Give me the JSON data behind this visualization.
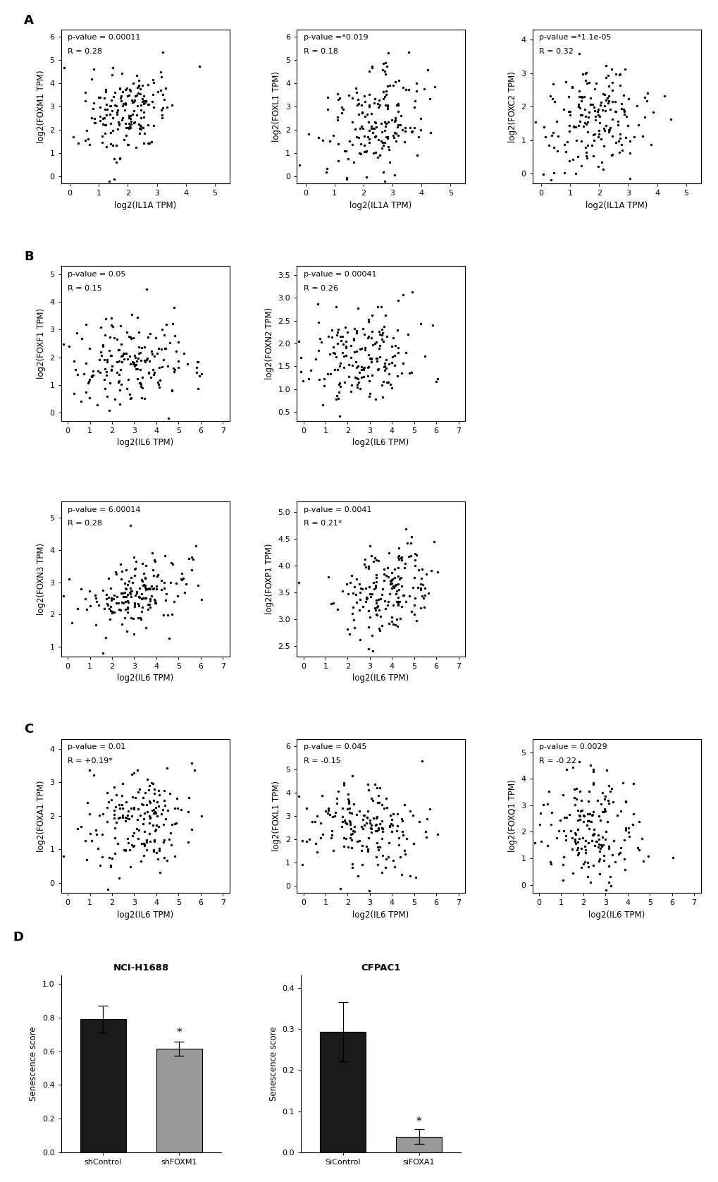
{
  "section_A": {
    "plots": [
      {
        "ylabel": "log2(FOXM1 TPM)",
        "xlabel": "log2(IL1A TPM)",
        "pvalue": "p-value = 0.00011",
        "R": "R = 0.28",
        "xlim": [
          -0.3,
          5.5
        ],
        "ylim": [
          -0.3,
          6.3
        ],
        "xticks": [
          0,
          1,
          2,
          3,
          4,
          5
        ],
        "yticks": [
          0,
          1,
          2,
          3,
          4,
          5,
          6
        ]
      },
      {
        "ylabel": "log2(FOXL1 TPM)",
        "xlabel": "log2(IL1A TPM)",
        "pvalue": "p-value =*0.019",
        "R": "R = 0.18",
        "xlim": [
          -0.3,
          5.5
        ],
        "ylim": [
          -0.3,
          6.3
        ],
        "xticks": [
          0,
          1,
          2,
          3,
          4,
          5
        ],
        "yticks": [
          0,
          1,
          2,
          3,
          4,
          5,
          6
        ]
      },
      {
        "ylabel": "log2(FOXC2 TPM)",
        "xlabel": "log2(IL1A TPM)",
        "pvalue": "p-value =*1.1e-05",
        "R": "R = 0.32",
        "xlim": [
          -0.3,
          5.5
        ],
        "ylim": [
          -0.3,
          4.3
        ],
        "xticks": [
          0,
          1,
          2,
          3,
          4,
          5
        ],
        "yticks": [
          0,
          1,
          2,
          3,
          4
        ]
      }
    ]
  },
  "section_B": {
    "plots": [
      {
        "ylabel": "log2(FOXF1 TPM)",
        "xlabel": "log2(IL6 TPM)",
        "pvalue": "p-value = 0.05",
        "R": "R = 0.15",
        "xlim": [
          -0.3,
          7.3
        ],
        "ylim": [
          -0.3,
          5.3
        ],
        "xticks": [
          0,
          1,
          2,
          3,
          4,
          5,
          6,
          7
        ],
        "yticks": [
          0,
          1,
          2,
          3,
          4,
          5
        ]
      },
      {
        "ylabel": "log2(FOXN2 TPM)",
        "xlabel": "log2(IL6 TPM)",
        "pvalue": "p-value = 0.00041",
        "R": "R = 0.26",
        "xlim": [
          -0.3,
          7.3
        ],
        "ylim": [
          0.3,
          3.7
        ],
        "xticks": [
          0,
          1,
          2,
          3,
          4,
          5,
          6,
          7
        ],
        "yticks": [
          0.5,
          1.0,
          1.5,
          2.0,
          2.5,
          3.0,
          3.5
        ]
      },
      {
        "ylabel": "log2(FOXN3 TPM)",
        "xlabel": "log2(IL6 TPM)",
        "pvalue": "p-value = 6.00014",
        "R": "R = 0.28",
        "xlim": [
          -0.3,
          7.3
        ],
        "ylim": [
          0.7,
          5.5
        ],
        "xticks": [
          0,
          1,
          2,
          3,
          4,
          5,
          6,
          7
        ],
        "yticks": [
          1,
          2,
          3,
          4,
          5
        ]
      },
      {
        "ylabel": "log2(FOXP1 TPM)",
        "xlabel": "log2(IL6 TPM)",
        "pvalue": "p-value = 0.0041",
        "R": "R = 0.21*",
        "xlim": [
          -0.3,
          7.3
        ],
        "ylim": [
          2.3,
          5.2
        ],
        "xticks": [
          0,
          1,
          2,
          3,
          4,
          5,
          6,
          7
        ],
        "yticks": [
          2.5,
          3.0,
          3.5,
          4.0,
          4.5,
          5.0
        ]
      }
    ]
  },
  "section_C": {
    "plots": [
      {
        "ylabel": "log2(FOXA1 TPM)",
        "xlabel": "log2(IL6 TPM)",
        "pvalue": "p-value = 0.01",
        "R": "R = +0.19*",
        "xlim": [
          -0.3,
          7.3
        ],
        "ylim": [
          -0.3,
          4.3
        ],
        "xticks": [
          0,
          1,
          2,
          3,
          4,
          5,
          6,
          7
        ],
        "yticks": [
          0,
          1,
          2,
          3,
          4
        ]
      },
      {
        "ylabel": "log2(FOXL1 TPM)",
        "xlabel": "log2(IL6 TPM)",
        "pvalue": "p-value = 0.045",
        "R": "R = -0.15",
        "xlim": [
          -0.3,
          7.3
        ],
        "ylim": [
          -0.3,
          6.3
        ],
        "xticks": [
          0,
          1,
          2,
          3,
          4,
          5,
          6,
          7
        ],
        "yticks": [
          0,
          1,
          2,
          3,
          4,
          5,
          6
        ]
      },
      {
        "ylabel": "log2(FOXQ1 TPM)",
        "xlabel": "log2(IL6 TPM)",
        "pvalue": "p-value = 0.0029",
        "R": "R = -0.22",
        "xlim": [
          -0.3,
          7.3
        ],
        "ylim": [
          -0.3,
          5.5
        ],
        "xticks": [
          0,
          1,
          2,
          3,
          4,
          5,
          6,
          7
        ],
        "yticks": [
          0,
          1,
          2,
          3,
          4,
          5
        ]
      }
    ]
  },
  "section_D": {
    "left": {
      "title": "NCI-H1688",
      "ylabel": "Senescence score",
      "bars": [
        {
          "label": "shControl",
          "value": 0.79,
          "error": 0.08,
          "color": "#1a1a1a"
        },
        {
          "label": "shFOXM1",
          "value": 0.615,
          "error": 0.04,
          "color": "#999999",
          "asterisk": true
        }
      ],
      "ylim": [
        0.0,
        1.05
      ],
      "yticks": [
        0.0,
        0.2,
        0.4,
        0.6,
        0.8,
        1.0
      ]
    },
    "right": {
      "title": "CFPAC1",
      "ylabel": "Senescence score",
      "bars": [
        {
          "label": "SiControl",
          "value": 0.293,
          "error": 0.072,
          "color": "#1a1a1a"
        },
        {
          "label": "siFOXA1",
          "value": 0.038,
          "error": 0.018,
          "color": "#999999",
          "asterisk": true
        }
      ],
      "ylim": [
        0.0,
        0.43
      ],
      "yticks": [
        0.0,
        0.1,
        0.2,
        0.3,
        0.4
      ]
    }
  },
  "dot_size": 6,
  "dot_color": "black",
  "font_size": 8.5,
  "section_label_fontsize": 13
}
